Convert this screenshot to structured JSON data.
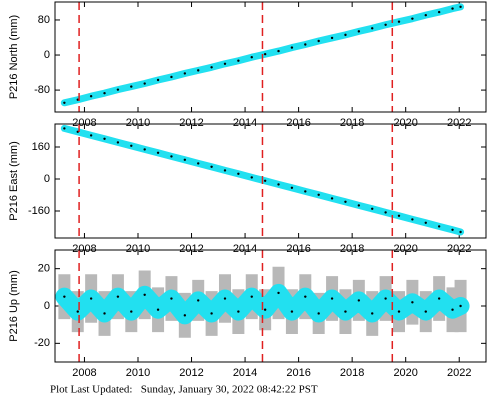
{
  "chart_data": [
    {
      "type": "line",
      "ylabel": "P216 North (mm)",
      "x": [
        2007.25,
        2007.75,
        2008.25,
        2008.75,
        2009.25,
        2009.75,
        2010.25,
        2010.75,
        2011.25,
        2011.75,
        2012.25,
        2012.75,
        2013.25,
        2013.75,
        2014.25,
        2014.75,
        2015.25,
        2015.75,
        2016.25,
        2016.75,
        2017.25,
        2017.75,
        2018.25,
        2018.75,
        2019.25,
        2019.75,
        2020.25,
        2020.75,
        2021.25,
        2021.75,
        2022.05
      ],
      "series": [
        {
          "color": "#22e0f0",
          "values": [
            -109,
            -102,
            -94,
            -87,
            -79,
            -72,
            -65,
            -57,
            -50,
            -42,
            -35,
            -28,
            -20,
            -13,
            -5,
            2,
            9,
            17,
            24,
            32,
            39,
            46,
            54,
            61,
            69,
            76,
            83,
            91,
            98,
            106,
            110
          ]
        }
      ],
      "event_lines": [
        2007.8,
        2014.65,
        2019.5
      ],
      "event_color": "#e02020",
      "xlim": [
        2006.9,
        2023.0
      ],
      "xticks": [
        2008,
        2010,
        2012,
        2014,
        2016,
        2018,
        2020,
        2022
      ],
      "ylim": [
        -130,
        121
      ],
      "yticks": [
        -80,
        0,
        80
      ]
    },
    {
      "type": "line",
      "ylabel": "P216 East (mm)",
      "x": [
        2007.25,
        2007.75,
        2008.25,
        2008.75,
        2009.25,
        2009.75,
        2010.25,
        2010.75,
        2011.25,
        2011.75,
        2012.25,
        2012.75,
        2013.25,
        2013.75,
        2014.25,
        2014.75,
        2015.25,
        2015.75,
        2016.25,
        2016.75,
        2017.25,
        2017.75,
        2018.25,
        2018.75,
        2019.25,
        2019.75,
        2020.25,
        2020.75,
        2021.25,
        2021.75,
        2022.05
      ],
      "series": [
        {
          "color": "#22e0f0",
          "values": [
            253,
            236,
            218,
            201,
            183,
            166,
            148,
            131,
            113,
            96,
            78,
            61,
            43,
            26,
            8,
            -9,
            -27,
            -44,
            -62,
            -79,
            -97,
            -114,
            -132,
            -149,
            -167,
            -184,
            -202,
            -219,
            -237,
            -254,
            -265
          ]
        }
      ],
      "event_lines": [
        2007.8,
        2014.65,
        2019.5
      ],
      "event_color": "#e02020",
      "xlim": [
        2006.9,
        2023.0
      ],
      "xticks": [
        2008,
        2010,
        2012,
        2014,
        2016,
        2018,
        2020,
        2022
      ],
      "ylim": [
        -295,
        275
      ],
      "yticks": [
        -160,
        0,
        160
      ]
    },
    {
      "type": "line",
      "ylabel": "P216 Up (mm)",
      "x": [
        2007.25,
        2007.75,
        2008.25,
        2008.75,
        2009.25,
        2009.75,
        2010.25,
        2010.75,
        2011.25,
        2011.75,
        2012.25,
        2012.75,
        2013.25,
        2013.75,
        2014.25,
        2014.75,
        2015.25,
        2015.75,
        2016.25,
        2016.75,
        2017.25,
        2017.75,
        2018.25,
        2018.75,
        2019.25,
        2019.75,
        2020.25,
        2020.75,
        2021.25,
        2021.75,
        2022.05
      ],
      "series": [
        {
          "color": "#22e0f0",
          "error_color": "#b8b8b8",
          "values": [
            5,
            -3,
            4,
            -4,
            5,
            -3,
            6,
            -2,
            4,
            -5,
            3,
            -4,
            4,
            -3,
            5,
            -2,
            7,
            -3,
            5,
            -4,
            4,
            -3,
            3,
            -4,
            4,
            -3,
            2,
            -3,
            4,
            -2,
            0
          ],
          "errors": [
            12,
            11,
            13,
            12,
            12,
            11,
            13,
            12,
            12,
            12,
            11,
            12,
            13,
            12,
            12,
            11,
            14,
            12,
            12,
            11,
            12,
            12,
            11,
            12,
            12,
            11,
            12,
            11,
            12,
            12,
            14
          ]
        }
      ],
      "event_lines": [
        2007.8,
        2014.65,
        2019.5
      ],
      "event_color": "#e02020",
      "xlim": [
        2006.9,
        2023.0
      ],
      "xticks": [
        2008,
        2010,
        2012,
        2014,
        2016,
        2018,
        2020,
        2022
      ],
      "ylim": [
        -30,
        30
      ],
      "yticks": [
        -20,
        0,
        20
      ]
    }
  ],
  "footer": "Plot Last Updated:   Sunday, January 30, 2022 08:42:22 PST"
}
